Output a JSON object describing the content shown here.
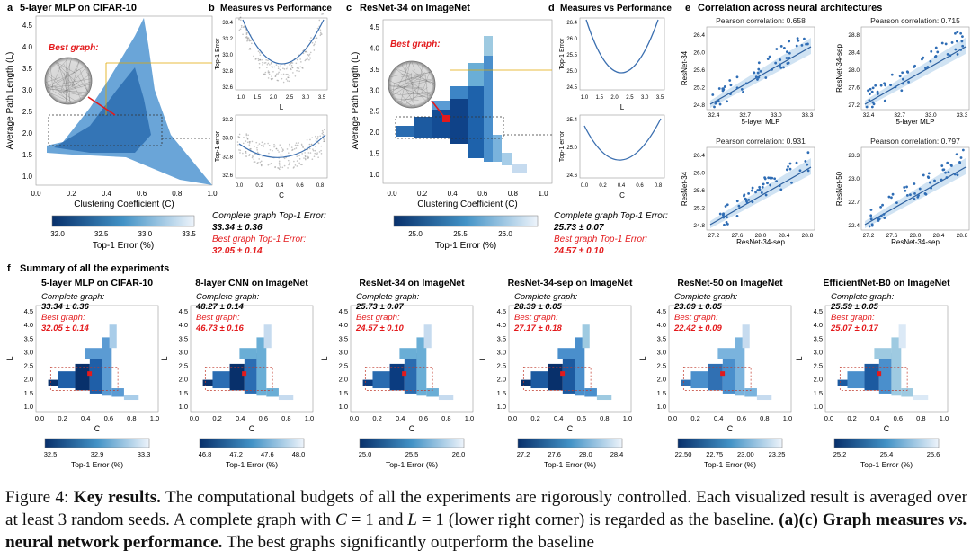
{
  "panel_a": {
    "letter": "a",
    "title": "5-layer MLP on CIFAR-10",
    "best_label": "Best graph:",
    "ylabel": "Average Path Length (L)",
    "xlabel": "Clustering Coefficient (C)",
    "yticks": [
      "1.0",
      "1.5",
      "2.0",
      "2.5",
      "3.0",
      "3.5",
      "4.0",
      "4.5"
    ],
    "xticks": [
      "0.0",
      "0.2",
      "0.4",
      "0.6",
      "0.8",
      "1.0"
    ],
    "cbar_ticks": [
      "32.0",
      "32.5",
      "33.0",
      "33.5"
    ],
    "cbar_label": "Top-1 Error (%)"
  },
  "panel_b": {
    "letter": "b",
    "title": "Measures vs Performance",
    "top_ylabel": "Top-1 Error",
    "top_yticks": [
      "32.6",
      "32.8",
      "33.0",
      "33.2",
      "33.4"
    ],
    "top_xticks": [
      "1.0",
      "1.5",
      "2.0",
      "2.5",
      "3.0",
      "3.5"
    ],
    "top_xlabel": "L",
    "bot_ylabel": "Top-1 error",
    "bot_yticks": [
      "32.6",
      "32.8",
      "33.0",
      "33.2"
    ],
    "bot_xticks": [
      "0.0",
      "0.2",
      "0.4",
      "0.6",
      "0.8"
    ],
    "bot_xlabel": "C",
    "complete_label": "Complete graph Top-1 Error:",
    "complete_value": "33.34 ± 0.36",
    "best_label": "Best graph Top-1 Error:",
    "best_value": "32.05 ± 0.14"
  },
  "panel_c": {
    "letter": "c",
    "title": "ResNet-34 on ImageNet",
    "best_label": "Best graph:",
    "ylabel": "Average Path Length (L)",
    "xlabel": "Clustering Coefficient (C)",
    "yticks": [
      "1.0",
      "1.5",
      "2.0",
      "2.5",
      "3.0",
      "3.5",
      "4.0",
      "4.5"
    ],
    "xticks": [
      "0.0",
      "0.2",
      "0.4",
      "0.6",
      "0.8",
      "1.0"
    ],
    "cbar_ticks": [
      "25.0",
      "25.5",
      "26.0"
    ],
    "cbar_label": "Top-1 Error (%)"
  },
  "panel_d": {
    "letter": "d",
    "title": "Measures vs Performance",
    "top_ylabel": "Top-1 Error",
    "top_yticks": [
      "24.5",
      "25.0",
      "25.5",
      "26.0",
      "26.4"
    ],
    "top_xticks": [
      "1.0",
      "1.5",
      "2.0",
      "2.5",
      "3.0",
      "3.5"
    ],
    "top_xlabel": "L",
    "bot_ylabel": "Top-1 error",
    "bot_yticks": [
      "24.6",
      "25.0",
      "25.4"
    ],
    "bot_xticks": [
      "0.0",
      "0.2",
      "0.4",
      "0.6",
      "0.8"
    ],
    "bot_xlabel": "C",
    "complete_label": "Complete graph Top-1 Error:",
    "complete_value": "25.73 ± 0.07",
    "best_label": "Best graph Top-1 Error:",
    "best_value": "24.57 ± 0.10"
  },
  "panel_e": {
    "letter": "e",
    "title": "Correlation across neural architectures",
    "plots": [
      {
        "corr": "Pearson correlation: 0.658",
        "xlabel": "5-layer MLP",
        "ylabel": "ResNet-34",
        "xticks": [
          "32.4",
          "32.7",
          "33.0",
          "33.3"
        ],
        "yticks": [
          "24.8",
          "25.2",
          "25.6",
          "26.0",
          "26.4"
        ]
      },
      {
        "corr": "Pearson correlation: 0.715",
        "xlabel": "5-layer MLP",
        "ylabel": "ResNet-34-sep",
        "xticks": [
          "32.4",
          "32.7",
          "33.0",
          "33.3"
        ],
        "yticks": [
          "27.2",
          "27.6",
          "28.0",
          "28.4",
          "28.8"
        ]
      },
      {
        "corr": "Pearson correlation: 0.931",
        "xlabel": "ResNet-34-sep",
        "ylabel": "ResNet-34",
        "xticks": [
          "27.2",
          "27.6",
          "28.0",
          "28.4",
          "28.8"
        ],
        "yticks": [
          "24.8",
          "25.2",
          "25.6",
          "26.0",
          "26.4"
        ]
      },
      {
        "corr": "Pearson correlation: 0.797",
        "xlabel": "ResNet-34-sep",
        "ylabel": "ResNet-50",
        "xticks": [
          "27.2",
          "27.6",
          "28.0",
          "28.4",
          "28.8"
        ],
        "yticks": [
          "22.4",
          "22.7",
          "23.0",
          "23.3"
        ]
      }
    ]
  },
  "panel_f": {
    "letter": "f",
    "title": "Summary of all the experiments",
    "ylabel": "L",
    "xlabel": "C",
    "complete_label": "Complete graph:",
    "best_label": "Best graph:",
    "cbar_label": "Top-1 Error (%)",
    "yticks": [
      "1.0",
      "1.5",
      "2.0",
      "2.5",
      "3.0",
      "3.5",
      "4.0",
      "4.5"
    ],
    "xticks": [
      "0.0",
      "0.2",
      "0.4",
      "0.6",
      "0.8",
      "1.0"
    ],
    "plots": [
      {
        "title": "5-layer MLP on CIFAR-10",
        "complete": "33.34 ± 0.36",
        "best": "32.05 ± 0.14",
        "cbar_ticks": [
          "32.5",
          "32.9",
          "33.3"
        ]
      },
      {
        "title": "8-layer CNN on ImageNet",
        "complete": "48.27 ± 0.14",
        "best": "46.73 ± 0.16",
        "cbar_ticks": [
          "46.8",
          "47.2",
          "47.6",
          "48.0"
        ]
      },
      {
        "title": "ResNet-34 on ImageNet",
        "complete": "25.73 ± 0.07",
        "best": "24.57 ± 0.10",
        "cbar_ticks": [
          "25.0",
          "25.5",
          "26.0"
        ]
      },
      {
        "title": "ResNet-34-sep on ImageNet",
        "complete": "28.39 ± 0.05",
        "best": "27.17 ± 0.18",
        "cbar_ticks": [
          "27.2",
          "27.6",
          "28.0",
          "28.4"
        ]
      },
      {
        "title": "ResNet-50 on ImageNet",
        "complete": "23.09 ± 0.05",
        "best": "22.42 ± 0.09",
        "cbar_ticks": [
          "22.50",
          "22.75",
          "23.00",
          "23.25"
        ]
      },
      {
        "title": "EfficientNet-B0 on ImageNet",
        "complete": "25.59 ± 0.05",
        "best": "25.07 ± 0.17",
        "cbar_ticks": [
          "25.2",
          "25.4",
          "25.6"
        ]
      }
    ]
  },
  "caption": {
    "label": "Figure 4:",
    "bold1": "Key results.",
    "text1": " The computational budgets of all the experiments are rigorously controlled. Each visualized result is averaged over at least 3 random seeds. A complete graph with ",
    "math1": "C",
    "text2": " = 1 and ",
    "math2": "L",
    "text3": " = 1 (lower right corner) is regarded as the baseline. ",
    "bold2": "(a)(c) Graph measures",
    "vs": "vs.",
    "bold3": "neural network performance.",
    "text4": " The best graphs significantly outperform the baseline"
  },
  "colors": {
    "dark": "#08306b",
    "mid": "#2171b5",
    "light": "#c6dbef",
    "best": "#e31a1c",
    "line": "#3b6fb0"
  }
}
